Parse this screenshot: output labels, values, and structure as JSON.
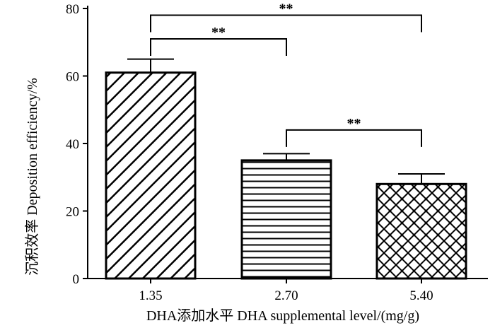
{
  "chart_data": {
    "type": "bar",
    "categories": [
      "1.35",
      "2.70",
      "5.40"
    ],
    "values": [
      61.0,
      35.0,
      28.0
    ],
    "errors": [
      4.0,
      2.0,
      3.0
    ],
    "patterns": [
      "diagonal",
      "horizontal",
      "crosshatch"
    ],
    "title": "",
    "xlabel": "DHA添加水平 DHA supplemental level/(mg/g)",
    "ylabel": "沉积效率  Deposition efficiency/%",
    "ylim": [
      0,
      80
    ],
    "yticks": [
      0,
      20,
      40,
      60,
      80
    ],
    "grid": false,
    "significance": [
      {
        "from": 0,
        "to": 2,
        "label": "**",
        "y": 78
      },
      {
        "from": 0,
        "to": 1,
        "label": "**",
        "y": 71
      },
      {
        "from": 1,
        "to": 2,
        "label": "**",
        "y": 44
      }
    ]
  }
}
